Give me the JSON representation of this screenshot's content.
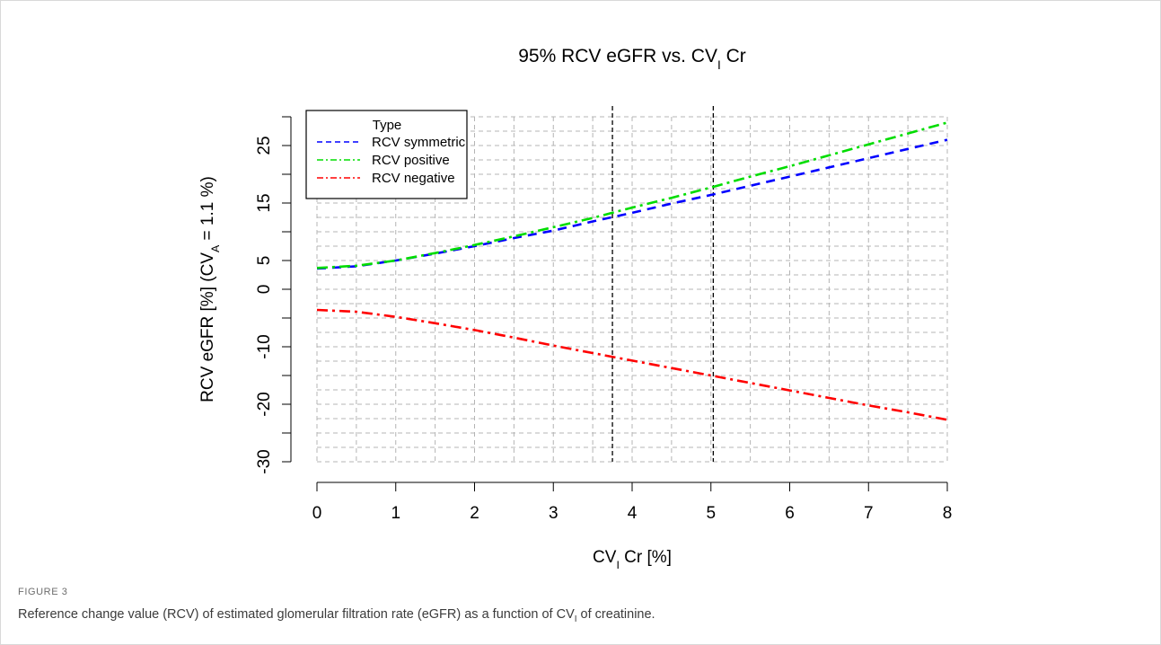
{
  "figure": {
    "label": "FIGURE 3",
    "caption_before": "Reference change value (RCV) of estimated glomerular filtration rate (eGFR) as a function of CV",
    "caption_sub": "I",
    "caption_after": " of creatinine."
  },
  "chart_data": {
    "type": "line",
    "title": {
      "text": "95% RCV eGFR vs. CV",
      "sub": "I",
      "suffix": " Cr"
    },
    "xlabel": {
      "text": "CV",
      "sub": "I",
      "suffix": " Cr [%]"
    },
    "ylabel": {
      "text": "RCV eGFR [%] (CV",
      "sub": "A",
      "suffix": " = 1.1 %)"
    },
    "xlim": [
      0,
      8
    ],
    "ylim": [
      -30,
      30
    ],
    "x_ticks": [
      0,
      1,
      2,
      3,
      4,
      5,
      6,
      7,
      8
    ],
    "y_ticks": [
      -30,
      -20,
      -10,
      0,
      5,
      15,
      25
    ],
    "grid": true,
    "vlines": [
      3.75,
      5.03
    ],
    "legend": {
      "title": "Type",
      "position": "top-left"
    },
    "x": [
      0,
      0.5,
      1,
      1.5,
      2,
      2.5,
      3,
      3.5,
      4,
      4.5,
      5,
      5.5,
      6,
      6.5,
      7,
      7.5,
      8
    ],
    "series": [
      {
        "name": "RCV symmetric",
        "color": "#0000ff",
        "dash": "dashed",
        "values": [
          3.6,
          4.0,
          5.0,
          6.2,
          7.5,
          8.9,
          10.2,
          11.8,
          13.3,
          14.9,
          16.4,
          18.0,
          19.6,
          21.2,
          22.8,
          24.4,
          26.0
        ]
      },
      {
        "name": "RCV positive",
        "color": "#00dd00",
        "dash": "dashdot",
        "values": [
          3.7,
          4.1,
          5.0,
          6.3,
          7.7,
          9.2,
          10.8,
          12.4,
          14.2,
          15.9,
          17.7,
          19.6,
          21.4,
          23.3,
          25.2,
          27.1,
          29.0
        ]
      },
      {
        "name": "RCV negative",
        "color": "#ff0000",
        "dash": "dashdot",
        "values": [
          -3.6,
          -3.9,
          -4.8,
          -5.9,
          -7.1,
          -8.4,
          -9.8,
          -11.1,
          -12.4,
          -13.7,
          -15.0,
          -16.3,
          -17.6,
          -18.9,
          -20.2,
          -21.4,
          -22.7
        ]
      }
    ]
  }
}
